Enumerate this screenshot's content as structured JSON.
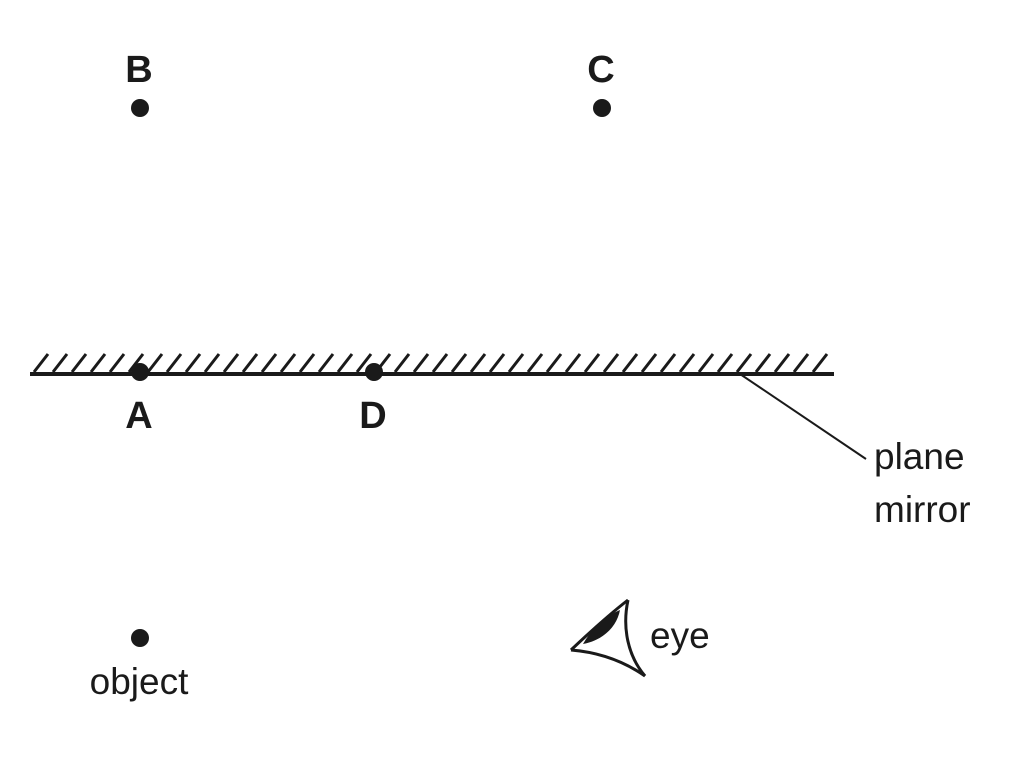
{
  "points": [
    {
      "id": "B",
      "label": "B"
    },
    {
      "id": "C",
      "label": "C"
    },
    {
      "id": "A",
      "label": "A"
    },
    {
      "id": "D",
      "label": "D"
    }
  ],
  "mirror": {
    "label_line1": "plane",
    "label_line2": "mirror"
  },
  "object": {
    "label": "object"
  },
  "eye": {
    "label": "eye",
    "icon": "eye-icon"
  },
  "colors": {
    "ink": "#1a1a1a",
    "background": "#ffffff"
  }
}
